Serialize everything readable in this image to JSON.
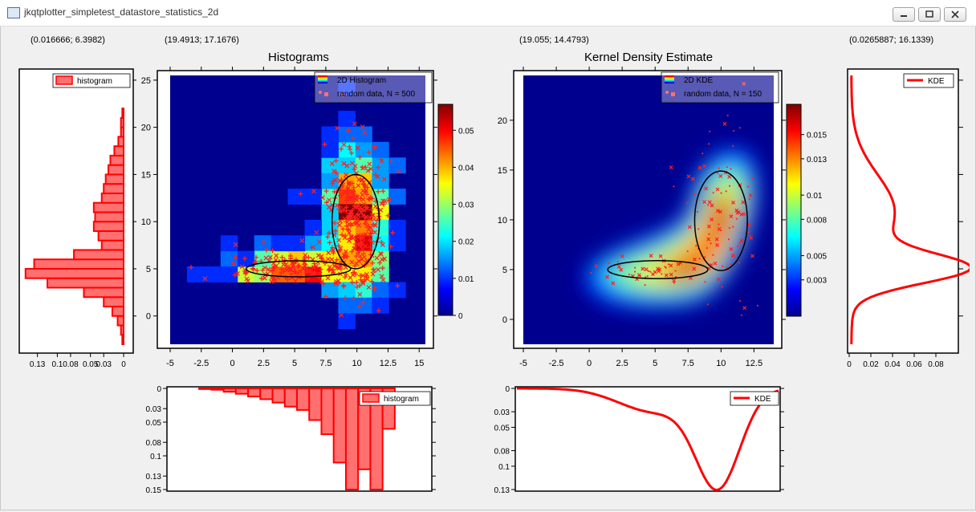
{
  "window": {
    "title": "jkqtplotter_simpletest_datastore_statistics_2d"
  },
  "coords": {
    "left_hist": "(0.016666; 6.3982)",
    "histograms": "(19.4913; 17.1676)",
    "kde": "(19.055; 14.4793)",
    "right_kde": "(0.0265887; 16.1339)"
  },
  "titles": {
    "histograms": "Histograms",
    "kde": "Kernel Density Estimate"
  },
  "legends": {
    "hist2d": "2D Histogram",
    "random500": "random data, N = 500",
    "kde2d": "2D KDE",
    "random150": "random data, N = 150",
    "histogram": "histogram",
    "kde": "KDE"
  },
  "colors": {
    "red": "#ff0000",
    "hist_fill": "#ff7070",
    "ellipse": "#000000"
  },
  "chart_data": [
    {
      "id": "hist2d",
      "type": "heatmap",
      "title": "Histograms",
      "xlim": [
        -5,
        15.5
      ],
      "ylim": [
        -3,
        25.5
      ],
      "xticks": [
        "-5",
        "-2.5",
        "0",
        "2.5",
        "5",
        "7.5",
        "10",
        "12.5",
        "15"
      ],
      "yticks": [
        "0",
        "5",
        "10",
        "15",
        "20",
        "25"
      ],
      "colorbar": {
        "range": [
          0,
          0.057
        ],
        "ticks": [
          "0",
          "0.01",
          "0.02",
          "0.03",
          "0.04",
          "0.05"
        ]
      },
      "series": [
        {
          "name": "2D Histogram"
        },
        {
          "name": "random data, N = 500"
        }
      ]
    },
    {
      "id": "kde2d",
      "type": "heatmap",
      "title": "Kernel Density Estimate",
      "xlim": [
        -5,
        14
      ],
      "ylim": [
        -2.5,
        24.5
      ],
      "xticks": [
        "-5",
        "-2.5",
        "0",
        "2.5",
        "5",
        "7.5",
        "10",
        "12.5"
      ],
      "yticks": [
        "0",
        "5",
        "10",
        "15",
        "20"
      ],
      "colorbar": {
        "range": [
          0,
          0.0175
        ],
        "ticks": [
          "0.003",
          "0.005",
          "0.008",
          "0.01",
          "0.013",
          "0.015"
        ]
      },
      "series": [
        {
          "name": "2D KDE"
        },
        {
          "name": "random data, N = 150"
        }
      ]
    },
    {
      "id": "lefthist",
      "type": "bar",
      "orientation": "horizontal",
      "xticks": [
        "0.13",
        "0.1",
        "0.08",
        "0.05",
        "0.03",
        "0"
      ],
      "y": [
        -2.5,
        -1.5,
        -0.5,
        0.5,
        1.5,
        2.5,
        3.5,
        4.5,
        5.5,
        6.5,
        7.5,
        8.5,
        9.5,
        10.5,
        11.5,
        12.5,
        13.5,
        14.5,
        15.5,
        16.5,
        17.5,
        18.5,
        19.5,
        20.5,
        21.5
      ],
      "values": [
        0.002,
        0.004,
        0.009,
        0.017,
        0.03,
        0.06,
        0.115,
        0.148,
        0.135,
        0.075,
        0.033,
        0.038,
        0.045,
        0.043,
        0.045,
        0.033,
        0.03,
        0.027,
        0.023,
        0.02,
        0.014,
        0.008,
        0.004,
        0.004,
        0.002
      ],
      "series": [
        {
          "name": "histogram"
        }
      ]
    },
    {
      "id": "bottomhist",
      "type": "bar",
      "yticks": [
        "0",
        "0.03",
        "0.05",
        "0.08",
        "0.1",
        "0.13",
        "0.15"
      ],
      "categories": [
        "-2",
        "-1",
        "0",
        "1",
        "2",
        "3",
        "4",
        "5",
        "6",
        "7",
        "8",
        "9",
        "10",
        "11",
        "12",
        "13"
      ],
      "values": [
        0.001,
        0.002,
        0.005,
        0.008,
        0.012,
        0.016,
        0.021,
        0.027,
        0.032,
        0.047,
        0.068,
        0.11,
        0.15,
        0.12,
        0.15,
        0.06
      ],
      "series": [
        {
          "name": "histogram"
        }
      ]
    },
    {
      "id": "rightkde",
      "type": "line",
      "xticks": [
        "0",
        "0.02",
        "0.04",
        "0.06",
        "0.08"
      ],
      "series": [
        {
          "name": "KDE"
        }
      ]
    },
    {
      "id": "bottomkde",
      "type": "line",
      "yticks": [
        "0",
        "0.03",
        "0.05",
        "0.08",
        "0.1",
        "0.13"
      ],
      "series": [
        {
          "name": "KDE"
        }
      ]
    }
  ]
}
